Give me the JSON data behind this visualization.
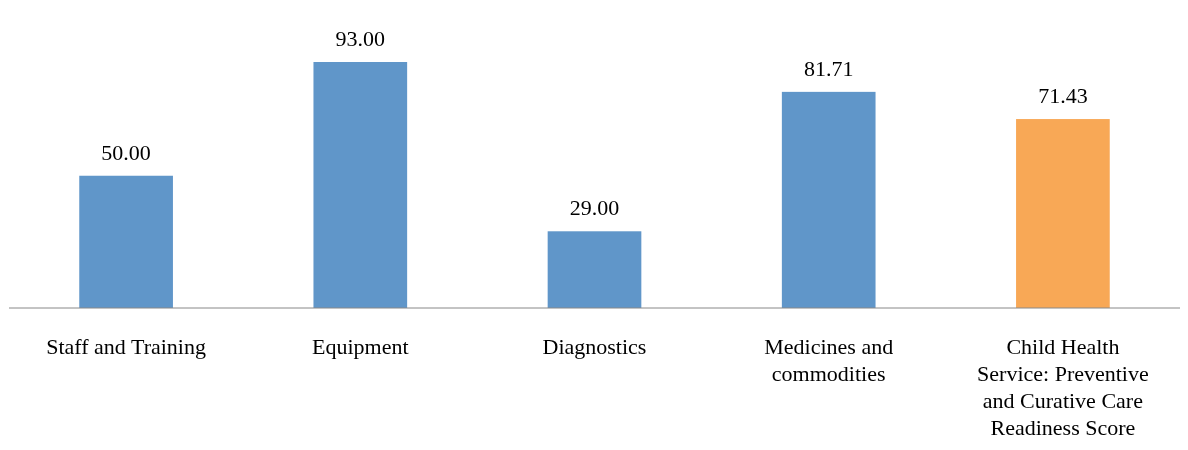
{
  "chart_data": {
    "type": "bar",
    "categories": [
      "Staff and Training",
      "Equipment",
      "Diagnostics",
      "Medicines and commodities",
      "Child Health Service: Preventive and Curative Care Readiness Score"
    ],
    "values": [
      50.0,
      93.0,
      29.0,
      81.71,
      71.43
    ],
    "colors": [
      "#6096c9",
      "#6096c9",
      "#6096c9",
      "#6096c9",
      "#f8a856"
    ],
    "data_labels": true,
    "value_labels": [
      "50.00",
      "93.00",
      "29.00",
      "81.71",
      "71.43"
    ]
  }
}
